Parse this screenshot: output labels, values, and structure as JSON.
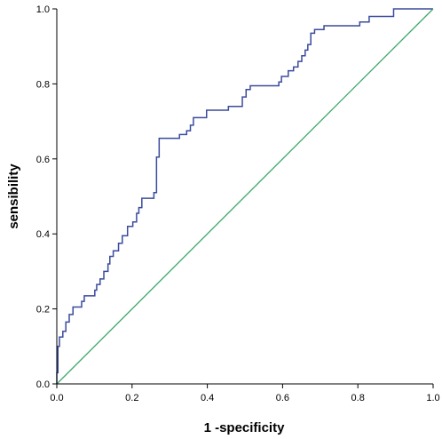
{
  "chart_data": {
    "type": "line",
    "xlabel": "1 -specificity",
    "ylabel": "sensibility",
    "xlim": [
      0,
      1
    ],
    "ylim": [
      0,
      1
    ],
    "x_ticks": [
      "0.0",
      "0.2",
      "0.4",
      "0.6",
      "0.8",
      "1.0"
    ],
    "y_ticks": [
      "0.0",
      "0.2",
      "0.4",
      "0.6",
      "0.8",
      "1.0"
    ],
    "grid": false,
    "colors": {
      "roc": "#3a4b9c",
      "reference": "#3fa86a",
      "axis": "#000000"
    },
    "series": [
      {
        "type": "step",
        "points": [
          [
            0.0,
            0.0
          ],
          [
            0.0,
            0.03
          ],
          [
            0.003,
            0.03
          ],
          [
            0.003,
            0.1
          ],
          [
            0.007,
            0.1
          ],
          [
            0.007,
            0.125
          ],
          [
            0.016,
            0.125
          ],
          [
            0.016,
            0.14
          ],
          [
            0.024,
            0.14
          ],
          [
            0.024,
            0.165
          ],
          [
            0.033,
            0.165
          ],
          [
            0.033,
            0.185
          ],
          [
            0.043,
            0.185
          ],
          [
            0.043,
            0.205
          ],
          [
            0.066,
            0.205
          ],
          [
            0.066,
            0.22
          ],
          [
            0.073,
            0.22
          ],
          [
            0.073,
            0.235
          ],
          [
            0.101,
            0.235
          ],
          [
            0.101,
            0.25
          ],
          [
            0.106,
            0.25
          ],
          [
            0.106,
            0.265
          ],
          [
            0.115,
            0.265
          ],
          [
            0.115,
            0.28
          ],
          [
            0.125,
            0.28
          ],
          [
            0.125,
            0.3
          ],
          [
            0.136,
            0.3
          ],
          [
            0.136,
            0.32
          ],
          [
            0.141,
            0.32
          ],
          [
            0.141,
            0.34
          ],
          [
            0.15,
            0.34
          ],
          [
            0.15,
            0.355
          ],
          [
            0.164,
            0.355
          ],
          [
            0.164,
            0.375
          ],
          [
            0.174,
            0.375
          ],
          [
            0.174,
            0.395
          ],
          [
            0.188,
            0.395
          ],
          [
            0.188,
            0.42
          ],
          [
            0.202,
            0.42
          ],
          [
            0.202,
            0.432
          ],
          [
            0.212,
            0.432
          ],
          [
            0.212,
            0.455
          ],
          [
            0.218,
            0.455
          ],
          [
            0.218,
            0.47
          ],
          [
            0.226,
            0.47
          ],
          [
            0.226,
            0.495
          ],
          [
            0.258,
            0.495
          ],
          [
            0.258,
            0.51
          ],
          [
            0.265,
            0.51
          ],
          [
            0.265,
            0.605
          ],
          [
            0.272,
            0.605
          ],
          [
            0.272,
            0.655
          ],
          [
            0.326,
            0.655
          ],
          [
            0.326,
            0.665
          ],
          [
            0.345,
            0.665
          ],
          [
            0.345,
            0.675
          ],
          [
            0.355,
            0.675
          ],
          [
            0.355,
            0.69
          ],
          [
            0.363,
            0.69
          ],
          [
            0.363,
            0.71
          ],
          [
            0.398,
            0.71
          ],
          [
            0.398,
            0.73
          ],
          [
            0.456,
            0.73
          ],
          [
            0.456,
            0.74
          ],
          [
            0.493,
            0.74
          ],
          [
            0.493,
            0.765
          ],
          [
            0.503,
            0.765
          ],
          [
            0.503,
            0.785
          ],
          [
            0.514,
            0.785
          ],
          [
            0.514,
            0.795
          ],
          [
            0.59,
            0.795
          ],
          [
            0.59,
            0.805
          ],
          [
            0.597,
            0.805
          ],
          [
            0.597,
            0.82
          ],
          [
            0.615,
            0.82
          ],
          [
            0.615,
            0.835
          ],
          [
            0.629,
            0.835
          ],
          [
            0.629,
            0.845
          ],
          [
            0.641,
            0.845
          ],
          [
            0.641,
            0.86
          ],
          [
            0.651,
            0.86
          ],
          [
            0.651,
            0.875
          ],
          [
            0.66,
            0.875
          ],
          [
            0.66,
            0.89
          ],
          [
            0.667,
            0.89
          ],
          [
            0.667,
            0.905
          ],
          [
            0.675,
            0.905
          ],
          [
            0.675,
            0.935
          ],
          [
            0.685,
            0.935
          ],
          [
            0.685,
            0.945
          ],
          [
            0.71,
            0.945
          ],
          [
            0.71,
            0.955
          ],
          [
            0.805,
            0.955
          ],
          [
            0.805,
            0.965
          ],
          [
            0.83,
            0.965
          ],
          [
            0.83,
            0.98
          ],
          [
            0.895,
            0.98
          ],
          [
            0.895,
            1.0
          ],
          [
            1.0,
            1.0
          ]
        ]
      },
      {
        "type": "reference",
        "points": [
          [
            0,
            0
          ],
          [
            1,
            1
          ]
        ]
      }
    ]
  }
}
